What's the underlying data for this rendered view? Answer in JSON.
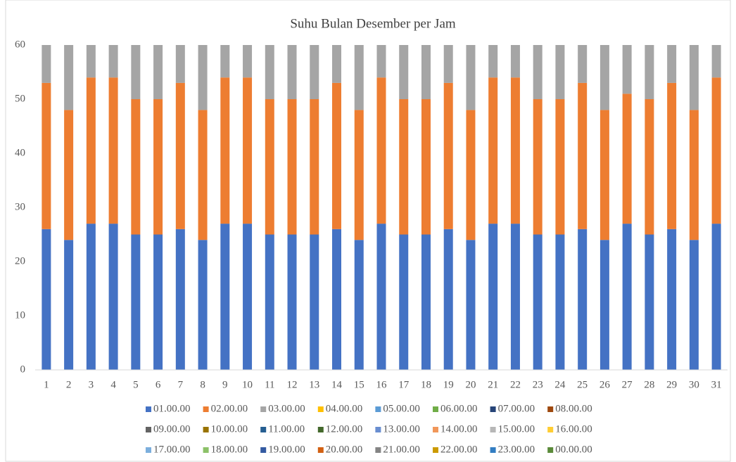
{
  "chart_data": {
    "type": "stacked_bar",
    "title": "Suhu Bulan Desember per Jam",
    "categories": [
      "1",
      "2",
      "3",
      "4",
      "5",
      "6",
      "7",
      "8",
      "9",
      "10",
      "11",
      "12",
      "13",
      "14",
      "15",
      "16",
      "17",
      "18",
      "19",
      "20",
      "21",
      "22",
      "23",
      "24",
      "25",
      "26",
      "27",
      "28",
      "29",
      "30",
      "31"
    ],
    "ylim": [
      0,
      60
    ],
    "yticks": [
      0,
      10,
      20,
      30,
      40,
      50,
      60
    ],
    "grid": false,
    "legend": "bottom",
    "series": [
      {
        "name": "01.00.00",
        "color": "#4472c4",
        "values": [
          26,
          24,
          27,
          27,
          25,
          25,
          26,
          24,
          27,
          27,
          25,
          25,
          25,
          26,
          24,
          27,
          25,
          25,
          26,
          24,
          27,
          27,
          25,
          25,
          26,
          24,
          27,
          25,
          26,
          24,
          27
        ]
      },
      {
        "name": "02.00.00",
        "color": "#ed7d31",
        "values": [
          27,
          24,
          27,
          27,
          25,
          25,
          27,
          24,
          27,
          27,
          25,
          25,
          25,
          27,
          24,
          27,
          25,
          25,
          27,
          24,
          27,
          27,
          25,
          25,
          27,
          24,
          24,
          25,
          27,
          24,
          27
        ]
      },
      {
        "name": "03.00.00",
        "color": "#a5a5a5",
        "values": [
          7,
          12,
          6,
          6,
          10,
          10,
          7,
          12,
          6,
          6,
          10,
          10,
          10,
          7,
          12,
          6,
          10,
          10,
          7,
          12,
          6,
          6,
          10,
          10,
          7,
          12,
          9,
          10,
          7,
          12,
          6
        ]
      },
      {
        "name": "04.00.00",
        "color": "#ffc000",
        "values": [
          null,
          null,
          null,
          null,
          null,
          null,
          null,
          null,
          null,
          null,
          null,
          null,
          null,
          null,
          null,
          null,
          null,
          null,
          null,
          null,
          null,
          null,
          null,
          null,
          null,
          null,
          null,
          null,
          null,
          null,
          null
        ]
      },
      {
        "name": "05.00.00",
        "color": "#5b9bd5",
        "values": [
          null,
          null,
          null,
          null,
          null,
          null,
          null,
          null,
          null,
          null,
          null,
          null,
          null,
          null,
          null,
          null,
          null,
          null,
          null,
          null,
          null,
          null,
          null,
          null,
          null,
          null,
          null,
          null,
          null,
          null,
          null
        ]
      },
      {
        "name": "06.00.00",
        "color": "#70ad47",
        "values": [
          null,
          null,
          null,
          null,
          null,
          null,
          null,
          null,
          null,
          null,
          null,
          null,
          null,
          null,
          null,
          null,
          null,
          null,
          null,
          null,
          null,
          null,
          null,
          null,
          null,
          null,
          null,
          null,
          null,
          null,
          null
        ]
      },
      {
        "name": "07.00.00",
        "color": "#264478",
        "values": [
          null,
          null,
          null,
          null,
          null,
          null,
          null,
          null,
          null,
          null,
          null,
          null,
          null,
          null,
          null,
          null,
          null,
          null,
          null,
          null,
          null,
          null,
          null,
          null,
          null,
          null,
          null,
          null,
          null,
          null,
          null
        ]
      },
      {
        "name": "08.00.00",
        "color": "#9e480e",
        "values": [
          null,
          null,
          null,
          null,
          null,
          null,
          null,
          null,
          null,
          null,
          null,
          null,
          null,
          null,
          null,
          null,
          null,
          null,
          null,
          null,
          null,
          null,
          null,
          null,
          null,
          null,
          null,
          null,
          null,
          null,
          null
        ]
      },
      {
        "name": "09.00.00",
        "color": "#636363",
        "values": [
          null,
          null,
          null,
          null,
          null,
          null,
          null,
          null,
          null,
          null,
          null,
          null,
          null,
          null,
          null,
          null,
          null,
          null,
          null,
          null,
          null,
          null,
          null,
          null,
          null,
          null,
          null,
          null,
          null,
          null,
          null
        ]
      },
      {
        "name": "10.00.00",
        "color": "#997300",
        "values": [
          null,
          null,
          null,
          null,
          null,
          null,
          null,
          null,
          null,
          null,
          null,
          null,
          null,
          null,
          null,
          null,
          null,
          null,
          null,
          null,
          null,
          null,
          null,
          null,
          null,
          null,
          null,
          null,
          null,
          null,
          null
        ]
      },
      {
        "name": "11.00.00",
        "color": "#255e91",
        "values": [
          null,
          null,
          null,
          null,
          null,
          null,
          null,
          null,
          null,
          null,
          null,
          null,
          null,
          null,
          null,
          null,
          null,
          null,
          null,
          null,
          null,
          null,
          null,
          null,
          null,
          null,
          null,
          null,
          null,
          null,
          null
        ]
      },
      {
        "name": "12.00.00",
        "color": "#43682b",
        "values": [
          null,
          null,
          null,
          null,
          null,
          null,
          null,
          null,
          null,
          null,
          null,
          null,
          null,
          null,
          null,
          null,
          null,
          null,
          null,
          null,
          null,
          null,
          null,
          null,
          null,
          null,
          null,
          null,
          null,
          null,
          null
        ]
      },
      {
        "name": "13.00.00",
        "color": "#698ed0",
        "values": [
          null,
          null,
          null,
          null,
          null,
          null,
          null,
          null,
          null,
          null,
          null,
          null,
          null,
          null,
          null,
          null,
          null,
          null,
          null,
          null,
          null,
          null,
          null,
          null,
          null,
          null,
          null,
          null,
          null,
          null,
          null
        ]
      },
      {
        "name": "14.00.00",
        "color": "#f1975a",
        "values": [
          null,
          null,
          null,
          null,
          null,
          null,
          null,
          null,
          null,
          null,
          null,
          null,
          null,
          null,
          null,
          null,
          null,
          null,
          null,
          null,
          null,
          null,
          null,
          null,
          null,
          null,
          null,
          null,
          null,
          null,
          null
        ]
      },
      {
        "name": "15.00.00",
        "color": "#b7b7b7",
        "values": [
          null,
          null,
          null,
          null,
          null,
          null,
          null,
          null,
          null,
          null,
          null,
          null,
          null,
          null,
          null,
          null,
          null,
          null,
          null,
          null,
          null,
          null,
          null,
          null,
          null,
          null,
          null,
          null,
          null,
          null,
          null
        ]
      },
      {
        "name": "16.00.00",
        "color": "#ffcd33",
        "values": [
          null,
          null,
          null,
          null,
          null,
          null,
          null,
          null,
          null,
          null,
          null,
          null,
          null,
          null,
          null,
          null,
          null,
          null,
          null,
          null,
          null,
          null,
          null,
          null,
          null,
          null,
          null,
          null,
          null,
          null,
          null
        ]
      },
      {
        "name": "17.00.00",
        "color": "#7cafdd",
        "values": [
          null,
          null,
          null,
          null,
          null,
          null,
          null,
          null,
          null,
          null,
          null,
          null,
          null,
          null,
          null,
          null,
          null,
          null,
          null,
          null,
          null,
          null,
          null,
          null,
          null,
          null,
          null,
          null,
          null,
          null,
          null
        ]
      },
      {
        "name": "18.00.00",
        "color": "#8cc168",
        "values": [
          null,
          null,
          null,
          null,
          null,
          null,
          null,
          null,
          null,
          null,
          null,
          null,
          null,
          null,
          null,
          null,
          null,
          null,
          null,
          null,
          null,
          null,
          null,
          null,
          null,
          null,
          null,
          null,
          null,
          null,
          null
        ]
      },
      {
        "name": "19.00.00",
        "color": "#335aa1",
        "values": [
          null,
          null,
          null,
          null,
          null,
          null,
          null,
          null,
          null,
          null,
          null,
          null,
          null,
          null,
          null,
          null,
          null,
          null,
          null,
          null,
          null,
          null,
          null,
          null,
          null,
          null,
          null,
          null,
          null,
          null,
          null
        ]
      },
      {
        "name": "20.00.00",
        "color": "#d26012",
        "values": [
          null,
          null,
          null,
          null,
          null,
          null,
          null,
          null,
          null,
          null,
          null,
          null,
          null,
          null,
          null,
          null,
          null,
          null,
          null,
          null,
          null,
          null,
          null,
          null,
          null,
          null,
          null,
          null,
          null,
          null,
          null
        ]
      },
      {
        "name": "21.00.00",
        "color": "#848484",
        "values": [
          null,
          null,
          null,
          null,
          null,
          null,
          null,
          null,
          null,
          null,
          null,
          null,
          null,
          null,
          null,
          null,
          null,
          null,
          null,
          null,
          null,
          null,
          null,
          null,
          null,
          null,
          null,
          null,
          null,
          null,
          null
        ]
      },
      {
        "name": "22.00.00",
        "color": "#cc9a00",
        "values": [
          null,
          null,
          null,
          null,
          null,
          null,
          null,
          null,
          null,
          null,
          null,
          null,
          null,
          null,
          null,
          null,
          null,
          null,
          null,
          null,
          null,
          null,
          null,
          null,
          null,
          null,
          null,
          null,
          null,
          null,
          null
        ]
      },
      {
        "name": "23.00.00",
        "color": "#327dc2",
        "values": [
          null,
          null,
          null,
          null,
          null,
          null,
          null,
          null,
          null,
          null,
          null,
          null,
          null,
          null,
          null,
          null,
          null,
          null,
          null,
          null,
          null,
          null,
          null,
          null,
          null,
          null,
          null,
          null,
          null,
          null,
          null
        ]
      },
      {
        "name": "00.00.00",
        "color": "#5a8a39",
        "values": [
          null,
          null,
          null,
          null,
          null,
          null,
          null,
          null,
          null,
          null,
          null,
          null,
          null,
          null,
          null,
          null,
          null,
          null,
          null,
          null,
          null,
          null,
          null,
          null,
          null,
          null,
          null,
          null,
          null,
          null,
          null
        ]
      }
    ]
  }
}
